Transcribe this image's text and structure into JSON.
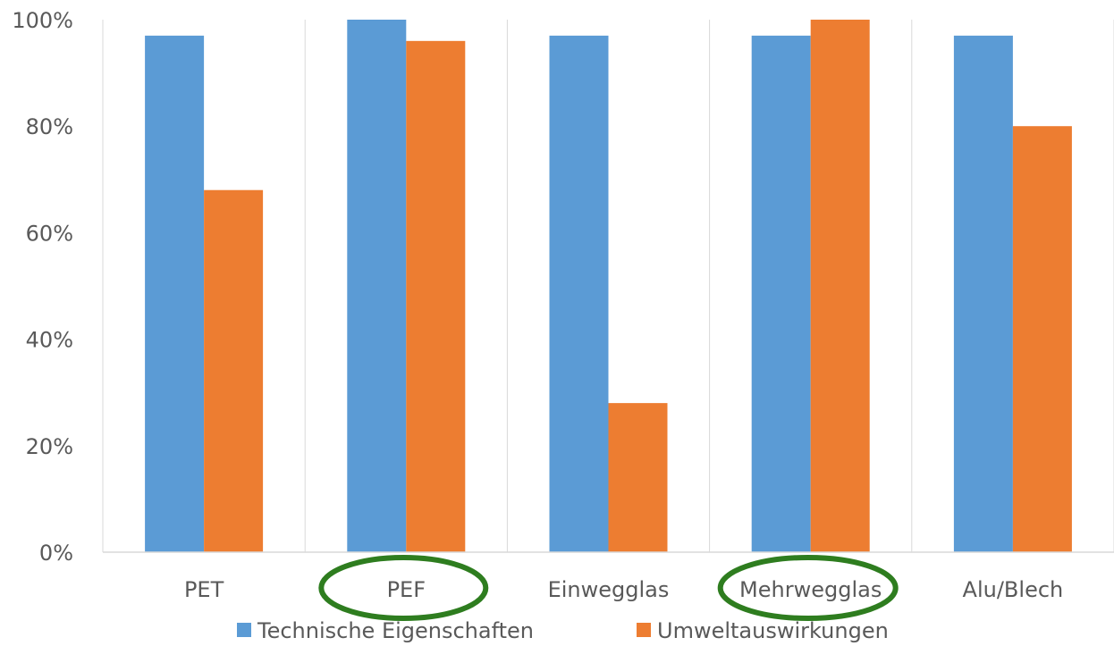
{
  "chart_data": {
    "type": "bar",
    "categories": [
      "PET",
      "PEF",
      "Einwegglas",
      "Mehrwegglas",
      "Alu/Blech"
    ],
    "series": [
      {
        "name": "Technische Eigenschaften",
        "values": [
          97,
          100,
          97,
          97,
          97
        ]
      },
      {
        "name": "Umweltauswirkungen",
        "values": [
          68,
          96,
          28,
          100,
          80
        ]
      }
    ],
    "y_ticks": [
      "0%",
      "20%",
      "40%",
      "60%",
      "80%",
      "100%"
    ],
    "ylim": [
      0,
      100
    ],
    "grid": "vertical category separators",
    "legend_position": "bottom",
    "annotations": {
      "highlighted_categories": [
        "PEF",
        "Mehrwegglas"
      ],
      "highlight_style": "green ellipse"
    }
  },
  "colors": {
    "technische": "#5b9bd5",
    "umwelt": "#ed7d31",
    "highlight": "#2e7d1f",
    "gridline": "#d9d9d9",
    "text": "#595959"
  }
}
